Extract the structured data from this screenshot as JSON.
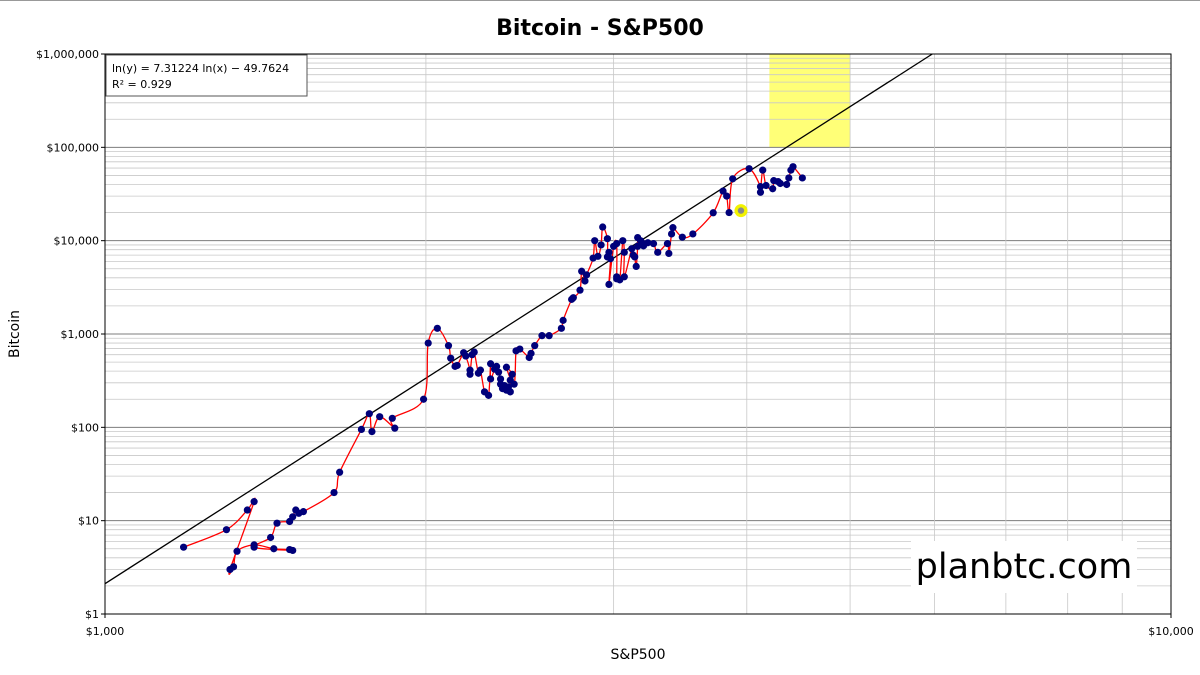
{
  "chart_data": {
    "type": "scatter",
    "title": "Bitcoin - S&P500",
    "xlabel": "S&P500",
    "ylabel": "Bitcoin",
    "x_scale": "log",
    "y_scale": "log",
    "xlim": [
      1000,
      10000
    ],
    "ylim": [
      1,
      1000000
    ],
    "x_tick_labels": [
      "$1,000",
      "$10,000"
    ],
    "y_tick_labels": [
      "$1",
      "$10",
      "$100",
      "$1,000",
      "$10,000",
      "$100,000",
      "$1,000,000"
    ],
    "grid": true,
    "regression": {
      "equation": "ln(y) = 7.31224 ln(x) − 49.7624",
      "r_squared": "R² = 0.929",
      "slope": 7.31224,
      "intercept": -49.7624
    },
    "highlight_region": {
      "x": [
        4200,
        5000
      ],
      "y": [
        100000,
        1000000
      ],
      "color": "#ffff77"
    },
    "current_point": {
      "x": 3950,
      "y": 21000,
      "color": "#f2f200"
    },
    "colors": {
      "points": "#00007a",
      "path": "#ff0000",
      "trend": "#000000"
    },
    "points": [
      [
        1185,
        5.2
      ],
      [
        1300,
        8
      ],
      [
        1360,
        13
      ],
      [
        1380,
        16
      ],
      [
        1310,
        3
      ],
      [
        1320,
        3.2
      ],
      [
        1330,
        4.7
      ],
      [
        1380,
        5.5
      ],
      [
        1440,
        5
      ],
      [
        1490,
        4.9
      ],
      [
        1500,
        4.8
      ],
      [
        1380,
        5.2
      ],
      [
        1430,
        6.6
      ],
      [
        1450,
        9.4
      ],
      [
        1490,
        9.8
      ],
      [
        1500,
        11
      ],
      [
        1510,
        13
      ],
      [
        1520,
        12
      ],
      [
        1535,
        12.5
      ],
      [
        1640,
        20
      ],
      [
        1660,
        33
      ],
      [
        1740,
        95
      ],
      [
        1770,
        140
      ],
      [
        1780,
        90
      ],
      [
        1810,
        130
      ],
      [
        1870,
        98
      ],
      [
        1860,
        125
      ],
      [
        1990,
        200
      ],
      [
        2010,
        800
      ],
      [
        2050,
        1150
      ],
      [
        2100,
        750
      ],
      [
        2110,
        550
      ],
      [
        2130,
        450
      ],
      [
        2140,
        460
      ],
      [
        2170,
        630
      ],
      [
        2180,
        580
      ],
      [
        2200,
        410
      ],
      [
        2200,
        370
      ],
      [
        2210,
        600
      ],
      [
        2220,
        640
      ],
      [
        2240,
        380
      ],
      [
        2250,
        410
      ],
      [
        2270,
        240
      ],
      [
        2290,
        220
      ],
      [
        2300,
        480
      ],
      [
        2300,
        330
      ],
      [
        2320,
        420
      ],
      [
        2330,
        450
      ],
      [
        2340,
        390
      ],
      [
        2350,
        330
      ],
      [
        2350,
        290
      ],
      [
        2360,
        260
      ],
      [
        2370,
        280
      ],
      [
        2380,
        250
      ],
      [
        2390,
        270
      ],
      [
        2400,
        240
      ],
      [
        2400,
        320
      ],
      [
        2410,
        370
      ],
      [
        2380,
        440
      ],
      [
        2420,
        290
      ],
      [
        2430,
        660
      ],
      [
        2450,
        690
      ],
      [
        2500,
        560
      ],
      [
        2510,
        620
      ],
      [
        2530,
        750
      ],
      [
        2570,
        960
      ],
      [
        2610,
        960
      ],
      [
        2680,
        1150
      ],
      [
        2690,
        1400
      ],
      [
        2740,
        2350
      ],
      [
        2750,
        2450
      ],
      [
        2790,
        2950
      ],
      [
        2800,
        4700
      ],
      [
        2820,
        3700
      ],
      [
        2830,
        4300
      ],
      [
        2870,
        6500
      ],
      [
        2880,
        10000
      ],
      [
        2900,
        6800
      ],
      [
        2920,
        9000
      ],
      [
        2930,
        14000
      ],
      [
        2960,
        10500
      ],
      [
        2960,
        6700
      ],
      [
        2970,
        7500
      ],
      [
        2980,
        6400
      ],
      [
        2970,
        3400
      ],
      [
        3000,
        8700
      ],
      [
        3020,
        9300
      ],
      [
        3020,
        3900
      ],
      [
        3020,
        4100
      ],
      [
        3040,
        3800
      ],
      [
        3060,
        10000
      ],
      [
        3070,
        7500
      ],
      [
        3070,
        4100
      ],
      [
        3120,
        8200
      ],
      [
        3130,
        7000
      ],
      [
        3140,
        6700
      ],
      [
        3150,
        5300
      ],
      [
        3160,
        8700
      ],
      [
        3160,
        10800
      ],
      [
        3180,
        10000
      ],
      [
        3190,
        9500
      ],
      [
        3200,
        8800
      ],
      [
        3230,
        9500
      ],
      [
        3270,
        9300
      ],
      [
        3300,
        7500
      ],
      [
        3370,
        9300
      ],
      [
        3380,
        7300
      ],
      [
        3400,
        11800
      ],
      [
        3410,
        13800
      ],
      [
        3480,
        10900
      ],
      [
        3560,
        11800
      ],
      [
        3720,
        19900
      ],
      [
        3800,
        34000
      ],
      [
        3830,
        30000
      ],
      [
        3850,
        20000
      ],
      [
        3880,
        46000
      ],
      [
        4020,
        59000
      ],
      [
        4120,
        38000
      ],
      [
        4120,
        33000
      ],
      [
        4140,
        57000
      ],
      [
        4170,
        39000
      ],
      [
        4230,
        36000
      ],
      [
        4240,
        44000
      ],
      [
        4280,
        43000
      ],
      [
        4300,
        41000
      ],
      [
        4360,
        40000
      ],
      [
        4380,
        47000
      ],
      [
        4400,
        57000
      ],
      [
        4420,
        62000
      ],
      [
        4510,
        47000
      ]
    ],
    "path_order": "chronological"
  },
  "watermark": "planbtc.com"
}
